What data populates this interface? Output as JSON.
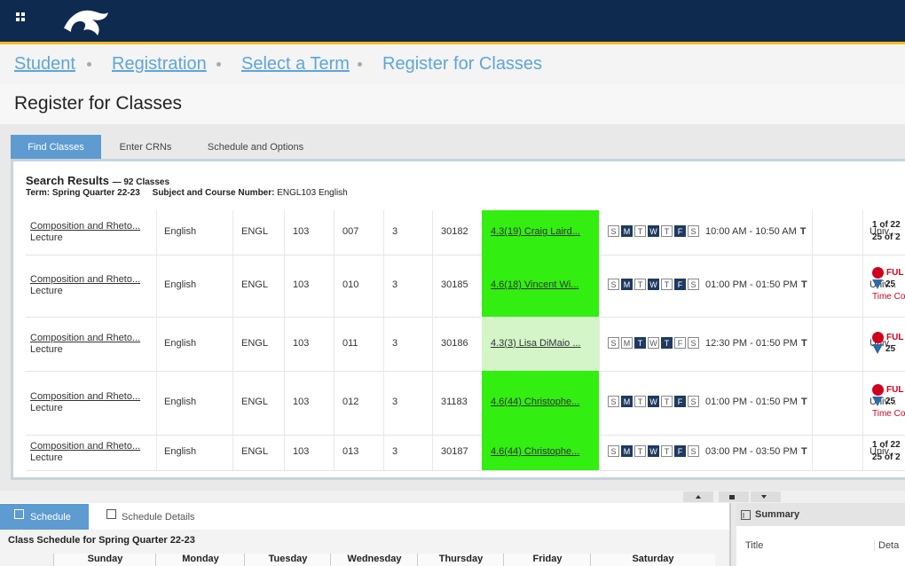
{
  "breadcrumb": [
    "Student",
    "Registration",
    "Select a Term",
    "Register for Classes"
  ],
  "page_title": "Register for Classes",
  "tabs": [
    "Find Classes",
    "Enter CRNs",
    "Schedule and Options"
  ],
  "search": {
    "title": "Search Results",
    "count": "— 92 Classes",
    "term_label": "Term:",
    "term": "Spring Quarter 22-23",
    "subject_label": "Subject and Course Number:",
    "subject": "ENGL103 English"
  },
  "rows": [
    {
      "title": "Composition and Rheto...",
      "kind": "Lecture",
      "subject": "English",
      "code": "ENGL",
      "course": "103",
      "section": "007",
      "hours": "3",
      "crn": "30182",
      "instructor": "4.3(19) Craig Laird...",
      "color": "#33ee11",
      "days": [
        "S",
        "M",
        "T",
        "W",
        "T",
        "F",
        "S"
      ],
      "active": [
        false,
        true,
        false,
        true,
        false,
        true,
        false
      ],
      "time": "10:00 AM - 10:50 AM",
      "time_tail": "T",
      "campus": "Univ...",
      "status": [
        {
          "text": "1 of 22",
          "tone": "black"
        },
        {
          "text": "25 of 2",
          "tone": "black"
        }
      ]
    },
    {
      "title": "Composition and Rheto...",
      "kind": "Lecture",
      "subject": "English",
      "code": "ENGL",
      "course": "103",
      "section": "010",
      "hours": "3",
      "crn": "30185",
      "instructor": "4.6(18) Vincent Wi...",
      "color": "#33ee11",
      "days": [
        "S",
        "M",
        "T",
        "W",
        "T",
        "F",
        "S"
      ],
      "active": [
        false,
        true,
        false,
        true,
        false,
        true,
        false
      ],
      "time": "01:00 PM - 01:50 PM",
      "time_tail": "T",
      "campus": "Univ...",
      "status": [
        {
          "text": "FUL",
          "tone": "red",
          "icon": "alert"
        },
        {
          "text": "25",
          "tone": "black",
          "icon": "wait"
        },
        {
          "text": "Time Co",
          "tone": "red"
        }
      ]
    },
    {
      "title": "Composition and Rheto...",
      "kind": "Lecture",
      "subject": "English",
      "code": "ENGL",
      "course": "103",
      "section": "011",
      "hours": "3",
      "crn": "30186",
      "instructor": "4.3(3) Lisa DiMaio ...",
      "color": "#d3f5c8",
      "days": [
        "S",
        "M",
        "T",
        "W",
        "T",
        "F",
        "S"
      ],
      "active": [
        false,
        false,
        true,
        false,
        true,
        false,
        false
      ],
      "time": "12:30 PM - 01:50 PM",
      "time_tail": "T",
      "campus": "Univ...",
      "status": [
        {
          "text": "FUL",
          "tone": "red",
          "icon": "alert"
        },
        {
          "text": "25",
          "tone": "black",
          "icon": "wait"
        }
      ]
    },
    {
      "title": "Composition and Rheto...",
      "kind": "Lecture",
      "subject": "English",
      "code": "ENGL",
      "course": "103",
      "section": "012",
      "hours": "3",
      "crn": "31183",
      "instructor": "4.6(44) Christophe...",
      "color": "#33ee11",
      "days": [
        "S",
        "M",
        "T",
        "W",
        "T",
        "F",
        "S"
      ],
      "active": [
        false,
        true,
        false,
        true,
        false,
        true,
        false
      ],
      "time": "01:00 PM - 01:50 PM",
      "time_tail": "T",
      "campus": "Univ...",
      "status": [
        {
          "text": "FUL",
          "tone": "red",
          "icon": "alert"
        },
        {
          "text": "25",
          "tone": "black",
          "icon": "wait"
        },
        {
          "text": "Time Co",
          "tone": "red"
        }
      ]
    },
    {
      "title": "Composition and Rheto...",
      "kind": "Lecture",
      "subject": "English",
      "code": "ENGL",
      "course": "103",
      "section": "013",
      "hours": "3",
      "crn": "30187",
      "instructor": "4.6(44) Christophe...",
      "color": "#33ee11",
      "days": [
        "S",
        "M",
        "T",
        "W",
        "T",
        "F",
        "S"
      ],
      "active": [
        false,
        true,
        false,
        true,
        false,
        true,
        false
      ],
      "time": "03:00 PM - 03:50 PM",
      "time_tail": "T",
      "campus": "Univ...",
      "status": [
        {
          "text": "1 of 22",
          "tone": "black"
        },
        {
          "text": "25 of 2",
          "tone": "black"
        }
      ]
    }
  ],
  "schedule": {
    "tabs": [
      "Schedule",
      "Schedule Details"
    ],
    "title": "Class Schedule for Spring Quarter 22-23",
    "days": [
      "Sunday",
      "Monday",
      "Tuesday",
      "Wednesday",
      "Thursday",
      "Friday",
      "Saturday"
    ]
  },
  "summary": {
    "title": "Summary",
    "columns": [
      "Title",
      "Deta"
    ]
  }
}
